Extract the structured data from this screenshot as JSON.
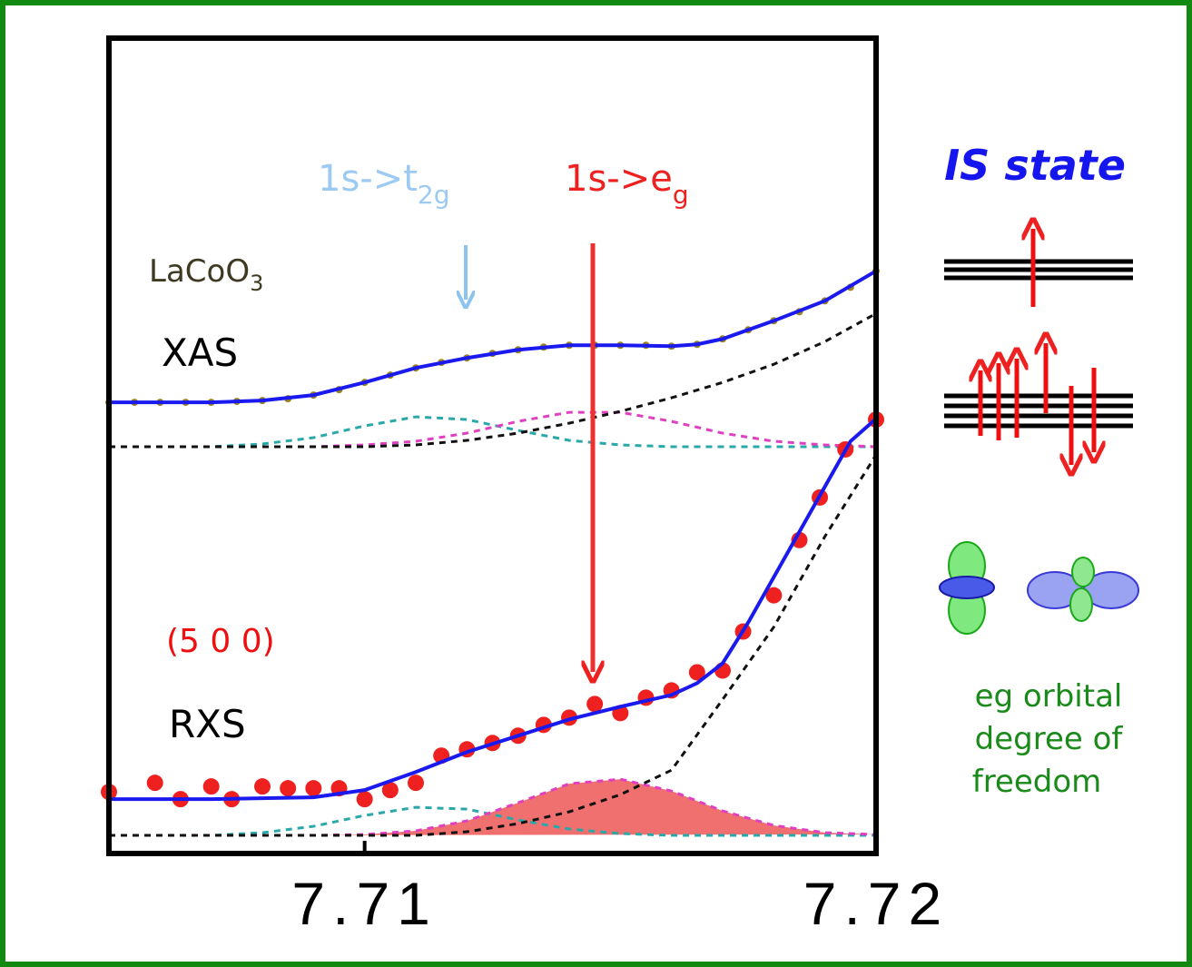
{
  "chart_data": {
    "type": "line",
    "xlim": [
      7.705,
      7.72
    ],
    "ylim": [
      0,
      9
    ],
    "xticks": [
      7.71,
      7.72
    ],
    "series": [
      {
        "style": "dashed",
        "color": "#2aa8a8",
        "x": [
          7.705,
          7.706,
          7.707,
          7.708,
          7.709,
          7.71,
          7.711,
          7.712,
          7.713,
          7.714,
          7.715,
          7.716,
          7.717,
          7.718,
          7.719,
          7.72
        ],
        "values": [
          4.49,
          4.49,
          4.49,
          4.52,
          4.59,
          4.72,
          4.82,
          4.79,
          4.67,
          4.56,
          4.51,
          4.49,
          4.49,
          4.49,
          4.49,
          4.49
        ]
      },
      {
        "style": "dashed",
        "color": "#e040c0",
        "x": [
          7.705,
          7.706,
          7.707,
          7.708,
          7.709,
          7.71,
          7.711,
          7.712,
          7.713,
          7.714,
          7.715,
          7.716,
          7.717,
          7.718,
          7.719,
          7.72
        ],
        "values": [
          4.49,
          4.49,
          4.49,
          4.49,
          4.49,
          4.51,
          4.55,
          4.64,
          4.77,
          4.87,
          4.87,
          4.77,
          4.64,
          4.55,
          4.51,
          4.49
        ]
      },
      {
        "style": "dashed",
        "color": "#111111",
        "x": [
          7.705,
          7.706,
          7.707,
          7.708,
          7.709,
          7.71,
          7.711,
          7.712,
          7.713,
          7.714,
          7.715,
          7.716,
          7.717,
          7.718,
          7.719,
          7.72
        ],
        "values": [
          4.49,
          4.49,
          4.49,
          4.49,
          4.49,
          4.49,
          4.51,
          4.56,
          4.64,
          4.75,
          4.88,
          5.03,
          5.2,
          5.4,
          5.65,
          5.96
        ]
      },
      {
        "style": "fill",
        "color": "#f07070",
        "x": [
          7.705,
          7.706,
          7.707,
          7.708,
          7.709,
          7.71,
          7.711,
          7.712,
          7.713,
          7.714,
          7.715,
          7.716,
          7.717,
          7.718,
          7.719,
          7.72
        ],
        "values": [
          0.2,
          0.2,
          0.2,
          0.2,
          0.2,
          0.21,
          0.25,
          0.36,
          0.56,
          0.77,
          0.82,
          0.69,
          0.47,
          0.31,
          0.23,
          0.21
        ]
      },
      {
        "style": "dashed",
        "color": "#2aa8a8",
        "x": [
          7.705,
          7.706,
          7.707,
          7.708,
          7.709,
          7.71,
          7.711,
          7.712,
          7.713,
          7.714,
          7.715,
          7.716,
          7.717,
          7.718,
          7.719,
          7.72
        ],
        "values": [
          0.2,
          0.2,
          0.2,
          0.23,
          0.3,
          0.42,
          0.51,
          0.49,
          0.37,
          0.27,
          0.22,
          0.2,
          0.2,
          0.2,
          0.2,
          0.2
        ]
      },
      {
        "style": "dashed",
        "color": "#e040c0",
        "x": [
          7.705,
          7.706,
          7.707,
          7.708,
          7.709,
          7.71,
          7.711,
          7.712,
          7.713,
          7.714,
          7.715,
          7.716,
          7.717,
          7.718,
          7.719,
          7.72
        ],
        "values": [
          0.2,
          0.2,
          0.2,
          0.2,
          0.2,
          0.21,
          0.25,
          0.36,
          0.56,
          0.77,
          0.82,
          0.69,
          0.47,
          0.31,
          0.23,
          0.21
        ]
      },
      {
        "style": "dashed",
        "color": "#111111",
        "x": [
          7.705,
          7.706,
          7.707,
          7.708,
          7.709,
          7.71,
          7.711,
          7.712,
          7.713,
          7.714,
          7.715,
          7.716,
          7.717,
          7.718,
          7.719,
          7.72
        ],
        "values": [
          0.2,
          0.2,
          0.2,
          0.2,
          0.2,
          0.2,
          0.2,
          0.24,
          0.33,
          0.46,
          0.65,
          0.92,
          1.7,
          2.5,
          3.5,
          4.4
        ]
      },
      {
        "style": "points",
        "color": "#9a8420",
        "x": [
          7.705,
          7.7055,
          7.706,
          7.7065,
          7.707,
          7.7075,
          7.708,
          7.7085,
          7.709,
          7.7095,
          7.71,
          7.7105,
          7.711,
          7.7115,
          7.712,
          7.7125,
          7.713,
          7.7135,
          7.714,
          7.7145,
          7.715,
          7.7155,
          7.716,
          7.7165,
          7.717,
          7.7175,
          7.718,
          7.7185,
          7.719,
          7.7195,
          7.72
        ],
        "values": [
          4.98,
          4.98,
          4.98,
          4.98,
          4.98,
          4.99,
          5.0,
          5.02,
          5.06,
          5.12,
          5.2,
          5.28,
          5.36,
          5.42,
          5.47,
          5.52,
          5.56,
          5.59,
          5.61,
          5.61,
          5.61,
          5.61,
          5.6,
          5.62,
          5.68,
          5.78,
          5.88,
          5.98,
          6.1,
          6.25,
          6.43
        ]
      },
      {
        "style": "line",
        "color": "#1a1aee",
        "x": [
          7.705,
          7.706,
          7.707,
          7.708,
          7.709,
          7.71,
          7.711,
          7.712,
          7.713,
          7.714,
          7.715,
          7.716,
          7.7165,
          7.717,
          7.718,
          7.719,
          7.72
        ],
        "values": [
          4.98,
          4.98,
          4.98,
          5.0,
          5.06,
          5.2,
          5.36,
          5.47,
          5.56,
          5.61,
          5.61,
          5.6,
          5.62,
          5.68,
          5.88,
          6.1,
          6.43
        ]
      },
      {
        "style": "points",
        "color": "#ee2020",
        "x": [
          7.705,
          7.7059,
          7.7064,
          7.707,
          7.7074,
          7.708,
          7.7085,
          7.709,
          7.7095,
          7.71,
          7.7105,
          7.711,
          7.7115,
          7.712,
          7.7125,
          7.713,
          7.7135,
          7.714,
          7.7145,
          7.715,
          7.7155,
          7.716,
          7.7165,
          7.717,
          7.7174,
          7.718,
          7.7185,
          7.7189,
          7.7194,
          7.72
        ],
        "values": [
          0.68,
          0.78,
          0.6,
          0.74,
          0.6,
          0.74,
          0.72,
          0.72,
          0.72,
          0.6,
          0.7,
          0.78,
          1.08,
          1.15,
          1.22,
          1.3,
          1.42,
          1.5,
          1.65,
          1.55,
          1.72,
          1.8,
          2.0,
          2.02,
          2.45,
          2.85,
          3.46,
          3.93,
          4.46,
          4.79
        ]
      },
      {
        "style": "line",
        "color": "#1a1aee",
        "x": [
          7.705,
          7.707,
          7.709,
          7.71,
          7.711,
          7.712,
          7.713,
          7.714,
          7.715,
          7.716,
          7.7165,
          7.717,
          7.7175,
          7.718,
          7.7185,
          7.719,
          7.7195,
          7.72
        ],
        "values": [
          0.6,
          0.6,
          0.62,
          0.7,
          0.9,
          1.12,
          1.3,
          1.48,
          1.62,
          1.75,
          1.88,
          2.1,
          2.55,
          3.05,
          3.55,
          4.05,
          4.55,
          4.8
        ]
      }
    ],
    "annotations": {
      "t2g": {
        "text": "1s->t",
        "sub": "2g"
      },
      "eg": {
        "text": "1s->e",
        "sub": "g"
      },
      "compound": {
        "text": "LaCoO",
        "sub": "3"
      },
      "xas": "XAS",
      "reflection": "(5 0 0)",
      "rxs": "RXS",
      "state": "IS state",
      "orbital": [
        "eg orbital",
        "degree of",
        "freedom"
      ]
    }
  }
}
